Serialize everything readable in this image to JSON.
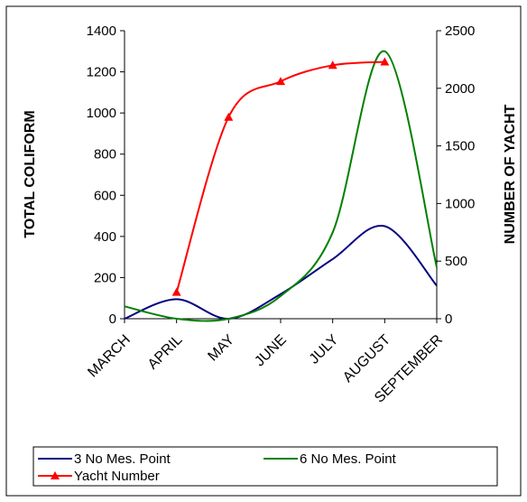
{
  "chart_data": {
    "type": "line",
    "title": "",
    "categories": [
      "MARCH",
      "APRIL",
      "MAY",
      "JUNE",
      "JULY",
      "AUGUST",
      "SEPTEMBER"
    ],
    "ylabel": "TOTAL COLIFORM",
    "ylim": [
      0,
      1400
    ],
    "yticks": [
      0,
      200,
      400,
      600,
      800,
      1000,
      1200,
      1400
    ],
    "y2label": "NUMBER OF YACHT",
    "y2lim": [
      0,
      2500
    ],
    "y2ticks": [
      0,
      500,
      1000,
      1500,
      2000,
      2500
    ],
    "grid": false,
    "legend_position": "bottom",
    "series": [
      {
        "name": "3 No Mes. Point",
        "axis": "left",
        "color": "#000080",
        "marker": "none",
        "smooth": true,
        "values": [
          0,
          95,
          0,
          120,
          290,
          450,
          160
        ]
      },
      {
        "name": "6 No Mes. Point",
        "axis": "left",
        "color": "#008000",
        "marker": "none",
        "smooth": true,
        "values": [
          60,
          0,
          0,
          110,
          420,
          1300,
          250
        ]
      },
      {
        "name": "Yacht Number",
        "axis": "right",
        "color": "#ff0000",
        "marker": "triangle",
        "smooth": true,
        "values": [
          null,
          230,
          1750,
          2060,
          2200,
          2230,
          null
        ]
      }
    ]
  }
}
